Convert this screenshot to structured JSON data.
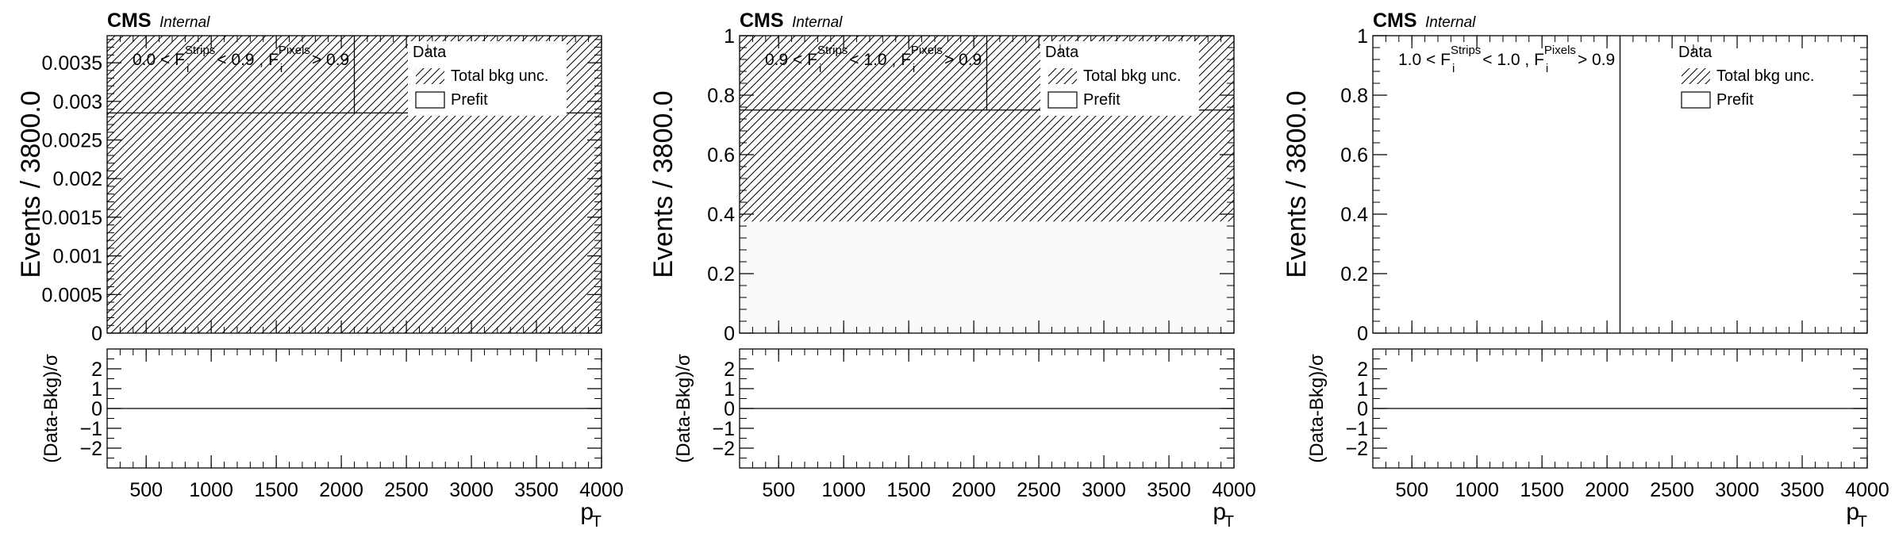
{
  "canvas": {
    "width": 2388,
    "height": 672
  },
  "colors": {
    "axis": "#000000",
    "hatch": "#000000",
    "background": "#ffffff",
    "fill_band": "#fafafa"
  },
  "chart_data": [
    {
      "type": "bar",
      "cms_label": "CMS",
      "internal_label": "Internal",
      "region_label": "0.0 < F_i^Strips < 0.9 , F_i^Pixels > 0.9",
      "region_parts": [
        "0.0 < F",
        "Strips",
        "i",
        " < 0.9 , F",
        "Pixels",
        "i",
        " > 0.9"
      ],
      "legend": [
        {
          "label": "Data",
          "marker": "point"
        },
        {
          "label": "Total bkg unc.",
          "marker": "hatch"
        },
        {
          "label": "Prefit",
          "marker": "box"
        }
      ],
      "ylabel": "Events / 3800.0",
      "ratio_ylabel": "(Data-Bkg)/σ",
      "xlabel": "p_T",
      "xlabel_main": "p",
      "xlabel_sub": "T",
      "xlim": [
        200,
        4000
      ],
      "ylim": [
        0,
        0.00385
      ],
      "yticks": [
        0,
        0.0005,
        0.001,
        0.0015,
        0.002,
        0.0025,
        0.003,
        0.0035
      ],
      "ytick_labels": [
        "0",
        "0.0005",
        "0.001",
        "0.0015",
        "0.002",
        "0.0025",
        "0.003",
        "0.0035"
      ],
      "xticks": [
        500,
        1000,
        1500,
        2000,
        2500,
        3000,
        3500,
        4000
      ],
      "xtick_labels": [
        "500",
        "1000",
        "1500",
        "2000",
        "2500",
        "3000",
        "3500",
        "4000"
      ],
      "ratio_ylim": [
        -3,
        3
      ],
      "ratio_yticks": [
        -2,
        -1,
        0,
        1,
        2
      ],
      "ratio_ytick_labels": [
        "−2",
        "−1",
        "0",
        "1",
        "2"
      ],
      "bin_edges": [
        200,
        4000
      ],
      "prefit": 0.00285,
      "unc_low": 0,
      "unc_high": 0.00385,
      "data_x": 2100,
      "ratio_values": [
        0
      ]
    },
    {
      "type": "bar",
      "cms_label": "CMS",
      "internal_label": "Internal",
      "region_label": "0.9 < F_i^Strips < 1.0 , F_i^Pixels > 0.9",
      "region_parts": [
        "0.9 < F",
        "Strips",
        "i",
        " < 1.0 , F",
        "Pixels",
        "i",
        " > 0.9"
      ],
      "legend": [
        {
          "label": "Data",
          "marker": "point"
        },
        {
          "label": "Total bkg unc.",
          "marker": "hatch"
        },
        {
          "label": "Prefit",
          "marker": "box"
        }
      ],
      "ylabel": "Events / 3800.0",
      "ratio_ylabel": "(Data-Bkg)/σ",
      "xlabel": "p_T",
      "xlabel_main": "p",
      "xlabel_sub": "T",
      "xlim": [
        200,
        4000
      ],
      "ylim": [
        0,
        1
      ],
      "yticks": [
        0,
        0.2,
        0.4,
        0.6,
        0.8,
        1
      ],
      "ytick_labels": [
        "0",
        "0.2",
        "0.4",
        "0.6",
        "0.8",
        "1"
      ],
      "xticks": [
        500,
        1000,
        1500,
        2000,
        2500,
        3000,
        3500,
        4000
      ],
      "xtick_labels": [
        "500",
        "1000",
        "1500",
        "2000",
        "2500",
        "3000",
        "3500",
        "4000"
      ],
      "ratio_ylim": [
        -3,
        3
      ],
      "ratio_yticks": [
        -2,
        -1,
        0,
        1,
        2
      ],
      "ratio_ytick_labels": [
        "−2",
        "−1",
        "0",
        "1",
        "2"
      ],
      "bin_edges": [
        200,
        4000
      ],
      "prefit": 0.75,
      "unc_low": 0.375,
      "unc_high": 1.0,
      "data_x": 2100,
      "ratio_values": [
        0
      ]
    },
    {
      "type": "bar",
      "cms_label": "CMS",
      "internal_label": "Internal",
      "region_label": "1.0 < F_i^Strips < 1.0 , F_i^Pixels > 0.9",
      "region_parts": [
        "1.0 < F",
        "Strips",
        "i",
        " < 1.0 , F",
        "Pixels",
        "i",
        " > 0.9"
      ],
      "legend": [
        {
          "label": "Data",
          "marker": "point"
        },
        {
          "label": "Total bkg unc.",
          "marker": "hatch"
        },
        {
          "label": "Prefit",
          "marker": "box"
        }
      ],
      "ylabel": "Events / 3800.0",
      "ratio_ylabel": "(Data-Bkg)/σ",
      "xlabel": "p_T",
      "xlabel_main": "p",
      "xlabel_sub": "T",
      "xlim": [
        200,
        4000
      ],
      "ylim": [
        0,
        1
      ],
      "yticks": [
        0,
        0.2,
        0.4,
        0.6,
        0.8,
        1
      ],
      "ytick_labels": [
        "0",
        "0.2",
        "0.4",
        "0.6",
        "0.8",
        "1"
      ],
      "xticks": [
        500,
        1000,
        1500,
        2000,
        2500,
        3000,
        3500,
        4000
      ],
      "xtick_labels": [
        "500",
        "1000",
        "1500",
        "2000",
        "2500",
        "3000",
        "3500",
        "4000"
      ],
      "ratio_ylim": [
        -3,
        3
      ],
      "ratio_yticks": [
        -2,
        -1,
        0,
        1,
        2
      ],
      "ratio_ytick_labels": [
        "−2",
        "−1",
        "0",
        "1",
        "2"
      ],
      "bin_edges": [
        200,
        4000
      ],
      "prefit": null,
      "unc_low": null,
      "unc_high": null,
      "data_x": 2100,
      "ratio_values": [
        0
      ]
    }
  ]
}
